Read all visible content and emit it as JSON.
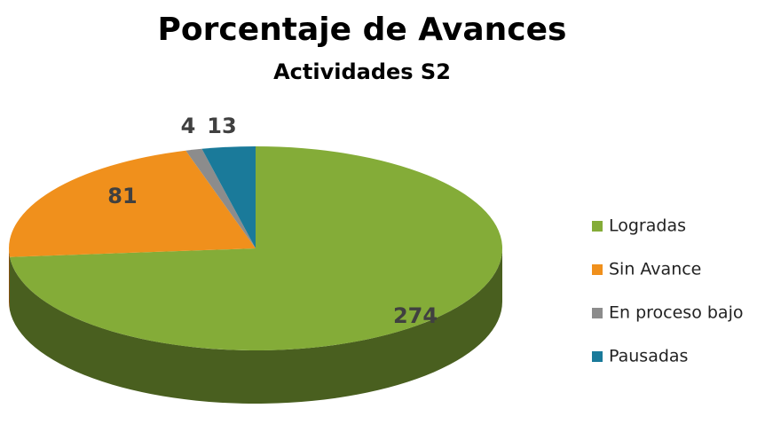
{
  "chart_data": {
    "type": "pie3d",
    "title": "Porcentaje de Avances",
    "subtitle": "Actividades S2",
    "categories": [
      "Logradas",
      "Sin Avance",
      "En proceso bajo",
      "Pausadas"
    ],
    "values": [
      274,
      81,
      4,
      13
    ],
    "colors": [
      "#84ac38",
      "#f0901c",
      "#8c8c8c",
      "#1a7a9a"
    ],
    "legend": "right"
  }
}
